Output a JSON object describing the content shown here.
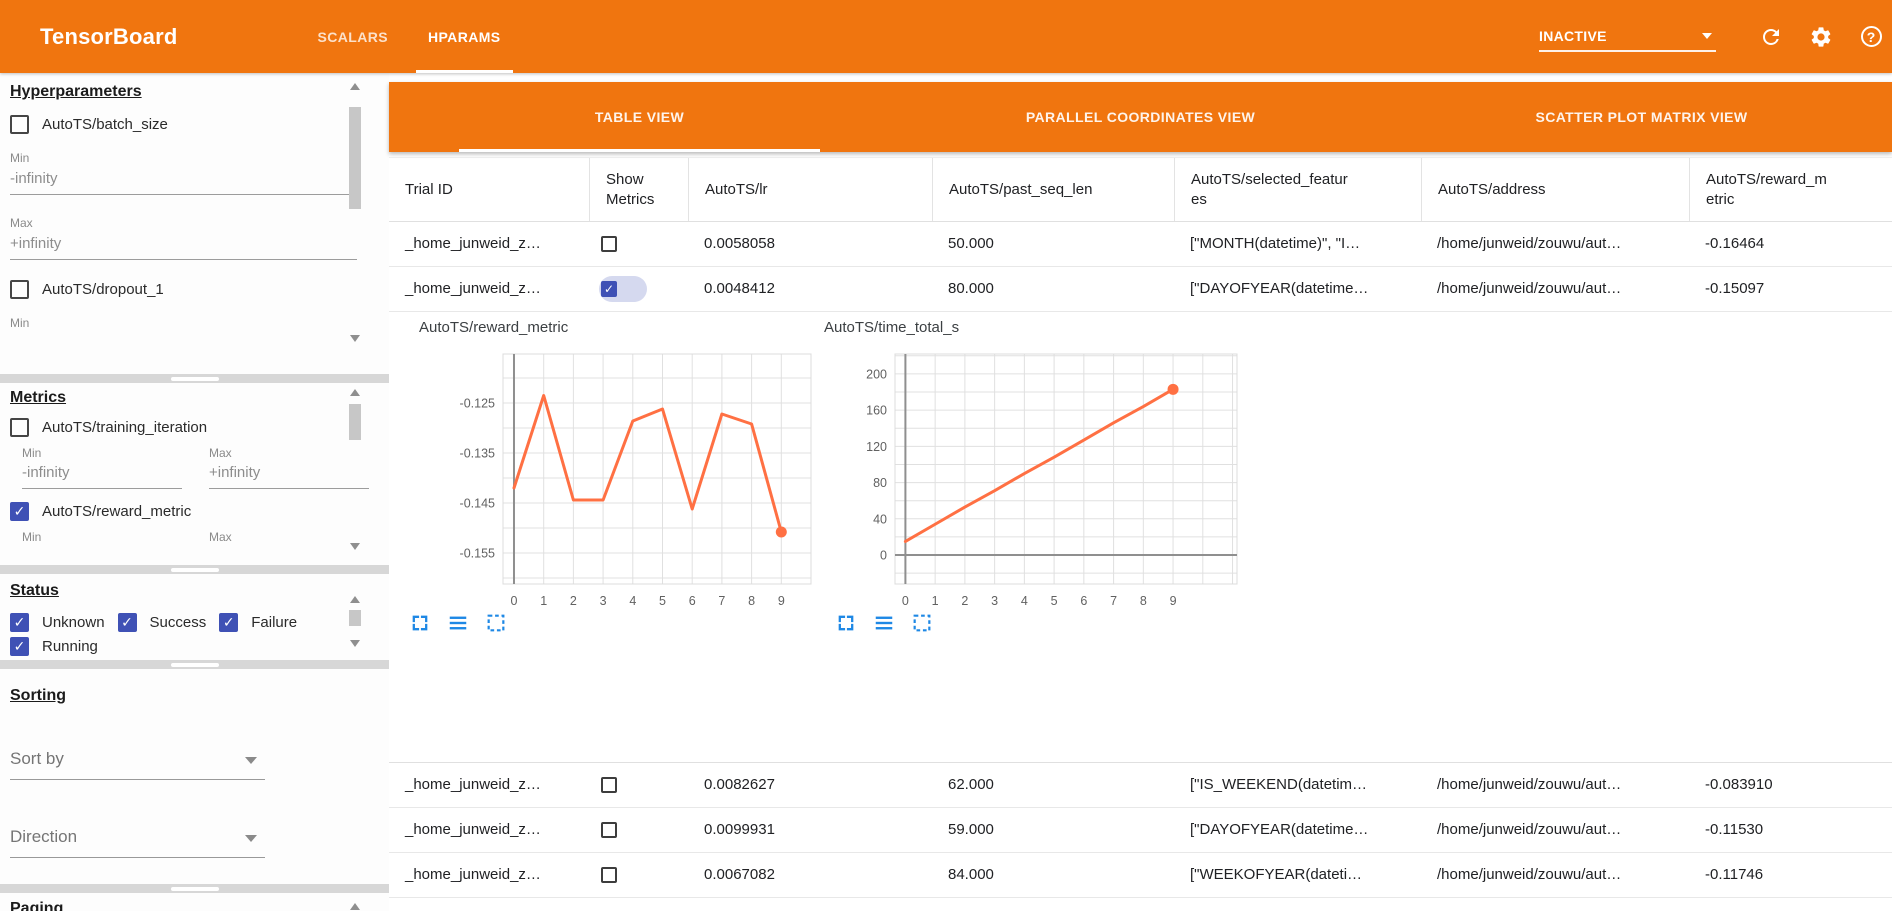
{
  "header": {
    "title": "TensorBoard",
    "nav": [
      {
        "label": "SCALARS",
        "active": false
      },
      {
        "label": "HPARAMS",
        "active": true
      }
    ],
    "run_status": "INACTIVE",
    "icons": [
      "caret-down",
      "refresh",
      "settings",
      "help"
    ]
  },
  "sidebar": {
    "hyperparameters": {
      "title": "Hyperparameters",
      "params": [
        {
          "label": "AutoTS/batch_size",
          "checked": false,
          "fields": [
            {
              "label": "Min",
              "value": "-infinity"
            },
            {
              "label": "Max",
              "value": "+infinity"
            }
          ]
        },
        {
          "label": "AutoTS/dropout_1",
          "checked": false,
          "fields": [
            {
              "label": "Min",
              "value": ""
            }
          ]
        }
      ]
    },
    "metrics": {
      "title": "Metrics",
      "items": [
        {
          "label": "AutoTS/training_iteration",
          "checked": false,
          "min_label": "Min",
          "min_value": "-infinity",
          "max_label": "Max",
          "max_value": "+infinity"
        },
        {
          "label": "AutoTS/reward_metric",
          "checked": true,
          "min_label": "Min",
          "min_value": "",
          "max_label": "Max",
          "max_value": ""
        }
      ]
    },
    "status": {
      "title": "Status",
      "options": [
        {
          "label": "Unknown",
          "checked": true
        },
        {
          "label": "Success",
          "checked": true
        },
        {
          "label": "Failure",
          "checked": true
        },
        {
          "label": "Running",
          "checked": true
        }
      ]
    },
    "sorting": {
      "title": "Sorting",
      "sort_by_label": "Sort by",
      "direction_label": "Direction"
    },
    "paging": {
      "title": "Paging"
    }
  },
  "main": {
    "view_tabs": [
      {
        "label": "TABLE VIEW",
        "active": true
      },
      {
        "label": "PARALLEL COORDINATES VIEW",
        "active": false
      },
      {
        "label": "SCATTER PLOT MATRIX VIEW",
        "active": false
      }
    ],
    "table": {
      "columns": [
        "Trial ID",
        "Show Metrics",
        "AutoTS/lr",
        "AutoTS/past_seq_len",
        "AutoTS/selected_features",
        "AutoTS/address",
        "AutoTS/reward_metric"
      ],
      "rows": [
        {
          "trial_id": "_home_junweid_z…",
          "show_metrics": false,
          "cells": [
            "0.0058058",
            "50.000",
            "[\"MONTH(datetime)\", \"I…",
            "/home/junweid/zouwu/aut…",
            "-0.16464"
          ]
        },
        {
          "trial_id": "_home_junweid_z…",
          "show_metrics": true,
          "expanded": true,
          "cells": [
            "0.0048412",
            "80.000",
            "[\"DAYOFYEAR(datetime…",
            "/home/junweid/zouwu/aut…",
            "-0.15097"
          ]
        },
        {
          "trial_id": "_home_junweid_z…",
          "show_metrics": false,
          "cells": [
            "0.0082627",
            "62.000",
            "[\"IS_WEEKEND(datetim…",
            "/home/junweid/zouwu/aut…",
            "-0.083910"
          ]
        },
        {
          "trial_id": "_home_junweid_z…",
          "show_metrics": false,
          "cells": [
            "0.0099931",
            "59.000",
            "[\"DAYOFYEAR(datetime…",
            "/home/junweid/zouwu/aut…",
            "-0.11530"
          ]
        },
        {
          "trial_id": "_home_junweid_z…",
          "show_metrics": false,
          "cells": [
            "0.0067082",
            "84.000",
            "[\"WEEKOFYEAR(dateti…",
            "/home/junweid/zouwu/aut…",
            "-0.11746"
          ]
        }
      ]
    }
  },
  "chart_data": [
    {
      "type": "line",
      "title": "AutoTS/reward_metric",
      "x": [
        0,
        1,
        2,
        3,
        4,
        5,
        6,
        7,
        8,
        9
      ],
      "values": [
        -0.142,
        -0.1235,
        -0.1444,
        -0.1444,
        -0.1286,
        -0.1262,
        -0.1462,
        -0.1272,
        -0.1292,
        -0.1508
      ],
      "xlim": [
        -0.37,
        10.0
      ],
      "ylim": [
        -0.1612,
        -0.1152
      ],
      "x_gridline_step": 1,
      "y_gridline_step": 0.005,
      "yticks": [
        {
          "v": -0.125,
          "label": "-0.125"
        },
        {
          "v": -0.135,
          "label": "-0.135"
        },
        {
          "v": -0.145,
          "label": "-0.145"
        },
        {
          "v": -0.155,
          "label": "-0.155"
        }
      ],
      "xticks": [
        0,
        1,
        2,
        3,
        4,
        5,
        6,
        7,
        8,
        9
      ],
      "line_color": "#ff7043",
      "end_marker": true,
      "axis_line_x0": true,
      "axis_line_y0": false,
      "grid": true,
      "legend": null
    },
    {
      "type": "line",
      "title": "AutoTS/time_total_s",
      "x": [
        0,
        1,
        2,
        3,
        4,
        5,
        6,
        7,
        8,
        9
      ],
      "values": [
        15,
        34,
        53,
        71,
        90,
        108,
        127,
        146,
        164,
        183
      ],
      "xlim": [
        -0.35,
        11.15
      ],
      "ylim": [
        -32,
        222
      ],
      "x_gridline_step": 1,
      "y_gridline_step": 20,
      "yticks": [
        {
          "v": 200,
          "label": "200"
        },
        {
          "v": 160,
          "label": "160"
        },
        {
          "v": 120,
          "label": "120"
        },
        {
          "v": 80,
          "label": "80"
        },
        {
          "v": 40,
          "label": "40"
        },
        {
          "v": 0,
          "label": "0"
        }
      ],
      "xticks": [
        0,
        1,
        2,
        3,
        4,
        5,
        6,
        7,
        8,
        9
      ],
      "line_color": "#ff7043",
      "end_marker": true,
      "axis_line_x0": true,
      "axis_line_y0": true,
      "grid": true,
      "legend": null
    }
  ],
  "chart_tools": {
    "expand": "fullscreen",
    "lines": "show-data",
    "selection": "selection-box"
  },
  "colors": {
    "brand_orange": "#f0750f",
    "checkbox_indigo": "#3f51b5",
    "chart_line_orange": "#ff7043",
    "chart_icon_blue": "#1e88e5",
    "grid_gray": "#e0e0e0"
  }
}
